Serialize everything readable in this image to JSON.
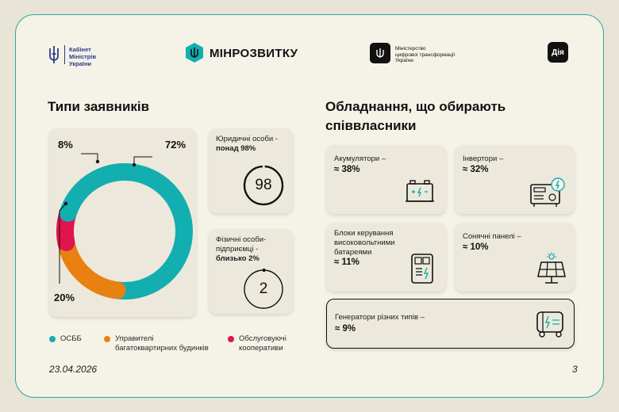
{
  "header": {
    "cabinet_line1": "Кабінет",
    "cabinet_line2": "Міністрів",
    "cabinet_line3": "України",
    "minrozvytku": "МІНРОЗВИТКУ",
    "ministry_line1": "Міністерство",
    "ministry_line2": "цифрової трансформації",
    "ministry_line3": "України",
    "diia": "Дія"
  },
  "left": {
    "title": "Типи заявників",
    "card_legal": {
      "label_line1": "Юридичні особи -",
      "label_line2": "понад 98%",
      "value": "98"
    },
    "card_physical": {
      "label_line1": "Фізичні особи-",
      "label_line2": "підприємці -",
      "label_line3": "близько 2%",
      "value": "2"
    },
    "pct_8": "8%",
    "pct_72": "72%",
    "pct_20": "20%",
    "legend": {
      "item1": "ОСББ",
      "item2_line1": "Управителі",
      "item2_line2": "багатоквартирних будинків",
      "item3_line1": "Обслуговуючі",
      "item3_line2": "кооперативи"
    }
  },
  "right": {
    "title_line1": "Обладнання, що обирають",
    "title_line2": "співвласники",
    "cards": {
      "batteries": {
        "label": "Акумулятори –",
        "value": "≈ 38%"
      },
      "inverters": {
        "label": "Інвертори –",
        "value": "≈ 32%"
      },
      "bms": {
        "label_line1": "Блоки керування",
        "label_line2": "високовольтними",
        "label_line3": "батареями",
        "value": "≈ 11%"
      },
      "solar": {
        "label": "Сонячні панелі –",
        "value": "≈ 10%"
      },
      "generators": {
        "label": "Генератори різних типів –",
        "value": "≈ 9%"
      }
    }
  },
  "footer": {
    "date": "23.04.2026",
    "page": "3"
  },
  "chart_data": {
    "type": "pie",
    "categories": [
      "ОСББ",
      "Управителі багатоквартирних будинків",
      "Обслуговуючі кооперативи"
    ],
    "values": [
      72,
      20,
      8
    ],
    "colors": [
      "#12aeb0",
      "#e8810f",
      "#e1144f"
    ]
  }
}
